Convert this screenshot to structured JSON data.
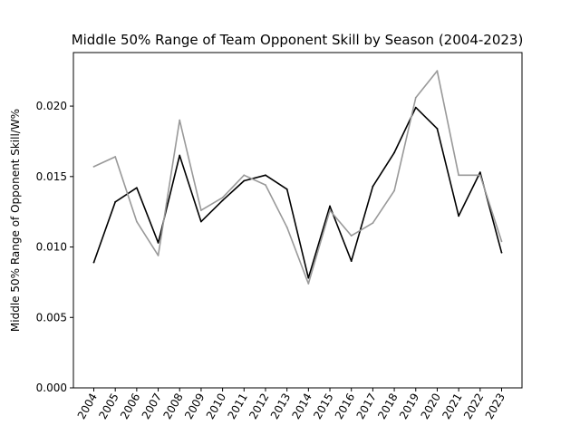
{
  "chart_data": {
    "type": "line",
    "title": "Middle 50% Range of Team Opponent Skill by Season (2004-2023)",
    "xlabel": "",
    "ylabel": "Middle 50% Range of Opponent Skill/W%",
    "categories": [
      "2004",
      "2005",
      "2006",
      "2007",
      "2008",
      "2009",
      "2010",
      "2011",
      "2012",
      "2013",
      "2014",
      "2015",
      "2016",
      "2017",
      "2018",
      "2019",
      "2020",
      "2021",
      "2022",
      "2023"
    ],
    "y_ticks": [
      "0.000",
      "0.005",
      "0.010",
      "0.015",
      "0.020"
    ],
    "ylim": [
      0,
      0.0238
    ],
    "grid": false,
    "legend": "none",
    "series": [
      {
        "color": "#000000",
        "values": [
          0.0089,
          0.0132,
          0.0142,
          0.0103,
          0.0165,
          0.0118,
          0.0133,
          0.0147,
          0.0151,
          0.0141,
          0.0078,
          0.0129,
          0.009,
          0.0143,
          0.0167,
          0.0199,
          0.0184,
          0.0122,
          0.0153,
          0.0096
        ]
      },
      {
        "color": "#999999",
        "values": [
          0.0157,
          0.0164,
          0.0118,
          0.0094,
          0.019,
          0.0126,
          0.0135,
          0.0151,
          0.0144,
          0.0114,
          0.0074,
          0.0126,
          0.0108,
          0.0117,
          0.014,
          0.0206,
          0.0225,
          0.0151,
          0.0151,
          0.0104
        ]
      }
    ]
  }
}
